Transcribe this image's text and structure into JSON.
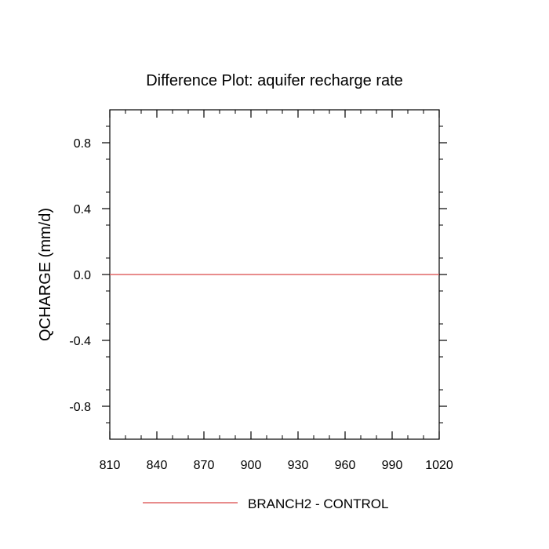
{
  "chart_data": {
    "type": "line",
    "title": "Difference Plot: aquifer recharge rate",
    "xlabel": "",
    "ylabel": "QCHARGE  (mm/d)",
    "xlim": [
      810,
      1020
    ],
    "ylim": [
      -1.0,
      1.0
    ],
    "x_ticks": [
      810,
      840,
      870,
      900,
      930,
      960,
      990,
      1020
    ],
    "x_tick_labels": [
      "810",
      "840",
      "870",
      "900",
      "930",
      "960",
      "990",
      "1020"
    ],
    "y_ticks": [
      0.8,
      0.4,
      0.0,
      -0.4,
      -0.8
    ],
    "y_tick_labels": [
      "0.8",
      "0.4",
      "0.0",
      "-0.4",
      "-0.8"
    ],
    "grid": false,
    "legend_position": "bottom-center",
    "series": [
      {
        "name": "BRANCH2 - CONTROL",
        "color": "#e06666",
        "x": [
          810,
          1020
        ],
        "y": [
          0.0,
          0.0
        ]
      }
    ]
  }
}
